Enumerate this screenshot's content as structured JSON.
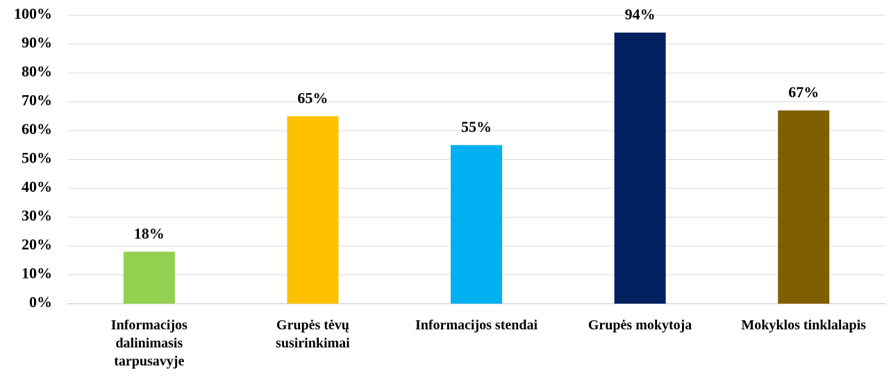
{
  "chart_data": {
    "type": "bar",
    "categories": [
      "Informacijos dalinimasis tarpusavyje",
      "Grupės tėvų susirinkimai",
      "Informacijos stendai",
      "Grupės mokytoja",
      "Mokyklos tinklalapis"
    ],
    "values": [
      18,
      65,
      55,
      94,
      67
    ],
    "value_labels": [
      "18%",
      "65%",
      "55%",
      "94%",
      "67%"
    ],
    "colors": [
      "#92d050",
      "#ffc000",
      "#00b0f0",
      "#002060",
      "#7f6000"
    ],
    "ylim": [
      0,
      100
    ],
    "yticks": [
      {
        "value": 0,
        "label": "0%"
      },
      {
        "value": 10,
        "label": "10%"
      },
      {
        "value": 20,
        "label": "20%"
      },
      {
        "value": 30,
        "label": "30%"
      },
      {
        "value": 40,
        "label": "40%"
      },
      {
        "value": 50,
        "label": "50%"
      },
      {
        "value": 60,
        "label": "60%"
      },
      {
        "value": 70,
        "label": "70%"
      },
      {
        "value": 80,
        "label": "80%"
      },
      {
        "value": 90,
        "label": "90%"
      },
      {
        "value": 100,
        "label": "100%"
      }
    ],
    "grid": true
  }
}
